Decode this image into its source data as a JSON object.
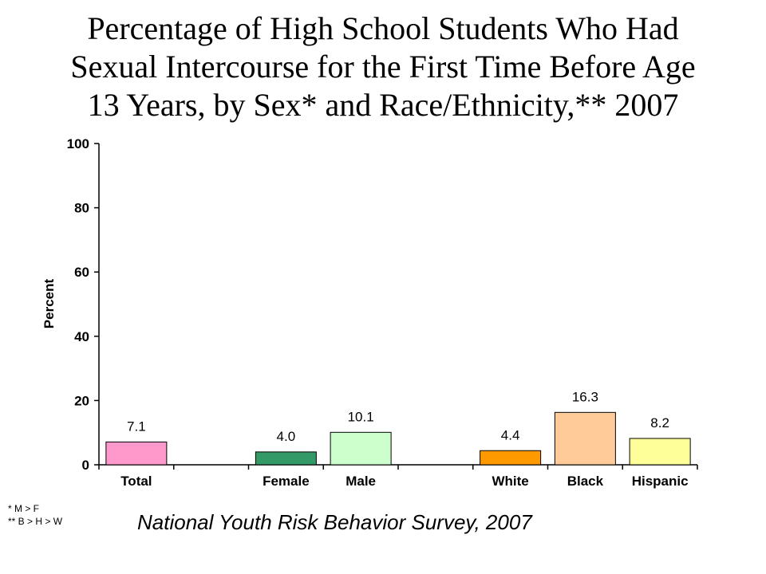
{
  "title_lines": [
    "Percentage of High School Students Who Had",
    "Sexual Intercourse for the First Time Before Age",
    "13 Years, by Sex* and Race/Ethnicity,** 2007"
  ],
  "footnotes": [
    "* M > F",
    "** B > H > W"
  ],
  "source": "National Youth Risk Behavior Survey, 2007",
  "chart_data": {
    "type": "bar",
    "title": "Percentage of High School Students Who Had Sexual Intercourse for the First Time Before Age 13 Years, by Sex* and Race/Ethnicity,** 2007",
    "categories": [
      "Total",
      "",
      "Female",
      "Male",
      "",
      "White",
      "Black",
      "Hispanic"
    ],
    "values": [
      7.1,
      null,
      4.0,
      10.1,
      null,
      4.4,
      16.3,
      8.2
    ],
    "value_labels": [
      "7.1",
      "",
      "4.0",
      "10.1",
      "",
      "4.4",
      "16.3",
      "8.2"
    ],
    "colors": [
      "#ff99cc",
      null,
      "#339966",
      "#ccffcc",
      null,
      "#ff9900",
      "#ffcc99",
      "#ffff99"
    ],
    "xlabel": "",
    "ylabel": "Percent",
    "ylim": [
      0,
      100
    ],
    "yticks": [
      0,
      20,
      40,
      60,
      80,
      100
    ],
    "grid": false,
    "legend": "none"
  }
}
